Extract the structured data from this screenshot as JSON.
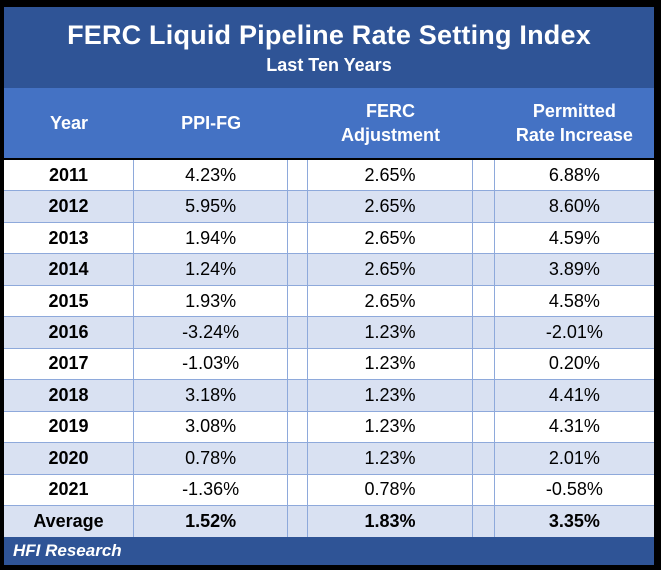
{
  "chart_data": {
    "type": "table",
    "title": "FERC Liquid Pipeline Rate Setting Index",
    "subtitle": "Last Ten Years",
    "columns": [
      "Year",
      "PPI-FG",
      "FERC Adjustment",
      "Permitted Rate Increase"
    ],
    "rows": [
      [
        "2011",
        "4.23%",
        "2.65%",
        "6.88%"
      ],
      [
        "2012",
        "5.95%",
        "2.65%",
        "8.60%"
      ],
      [
        "2013",
        "1.94%",
        "2.65%",
        "4.59%"
      ],
      [
        "2014",
        "1.24%",
        "2.65%",
        "3.89%"
      ],
      [
        "2015",
        "1.93%",
        "2.65%",
        "4.58%"
      ],
      [
        "2016",
        "-3.24%",
        "1.23%",
        "-2.01%"
      ],
      [
        "2017",
        "-1.03%",
        "1.23%",
        "0.20%"
      ],
      [
        "2018",
        "3.18%",
        "1.23%",
        "4.41%"
      ],
      [
        "2019",
        "3.08%",
        "1.23%",
        "4.31%"
      ],
      [
        "2020",
        "0.78%",
        "1.23%",
        "2.01%"
      ],
      [
        "2021",
        "-1.36%",
        "0.78%",
        "-0.58%"
      ]
    ],
    "average_row": [
      "Average",
      "1.52%",
      "1.83%",
      "3.35%"
    ],
    "source": "HFI Research"
  },
  "display": {
    "header": {
      "col1": [
        "Year"
      ],
      "col2": [
        "PPI-FG"
      ],
      "col3": [
        "FERC",
        "Adjustment"
      ],
      "col4": [
        "Permitted",
        "Rate Increase"
      ]
    }
  },
  "colors": {
    "title_bar": "#2F5496",
    "header_row": "#4472C4",
    "alt_row": "#D9E1F2",
    "gridline": "#8EA9DB",
    "footer_bar": "#2F5496",
    "outer_border": "#000000",
    "text": "#000000",
    "header_text": "#FFFFFF"
  }
}
